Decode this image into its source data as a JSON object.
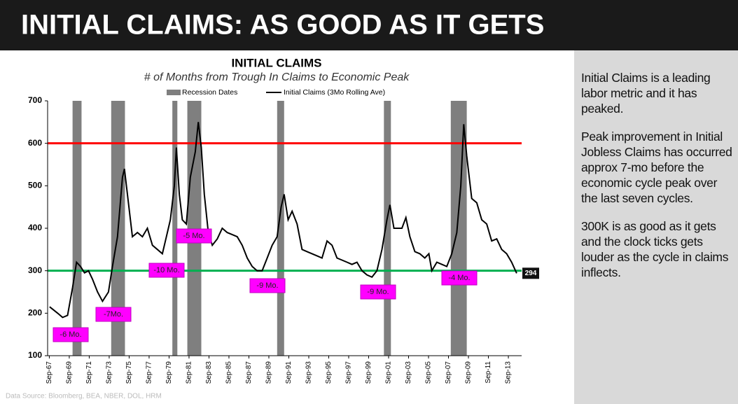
{
  "header": {
    "title": "INITIAL CLAIMS: AS GOOD AS IT GETS"
  },
  "chart_data": {
    "type": "line",
    "title": "INITIAL CLAIMS",
    "subtitle": "# of Months from Trough In Claims to Economic Peak",
    "xlim": [
      1967.5,
      2015
    ],
    "ylim": [
      100,
      700
    ],
    "yticks": [
      100,
      200,
      300,
      400,
      500,
      600,
      700
    ],
    "xticks": [
      {
        "value": 1967.67,
        "label": "Sep-67"
      },
      {
        "value": 1969.67,
        "label": "Sep-69"
      },
      {
        "value": 1971.67,
        "label": "Sep-71"
      },
      {
        "value": 1973.67,
        "label": "Sep-73"
      },
      {
        "value": 1975.67,
        "label": "Sep-75"
      },
      {
        "value": 1977.67,
        "label": "Sep-77"
      },
      {
        "value": 1979.67,
        "label": "Sep-79"
      },
      {
        "value": 1981.67,
        "label": "Sep-81"
      },
      {
        "value": 1983.67,
        "label": "Sep-83"
      },
      {
        "value": 1985.67,
        "label": "Sep-85"
      },
      {
        "value": 1987.67,
        "label": "Sep-87"
      },
      {
        "value": 1989.67,
        "label": "Sep-89"
      },
      {
        "value": 1991.67,
        "label": "Sep-91"
      },
      {
        "value": 1993.67,
        "label": "Sep-93"
      },
      {
        "value": 1995.67,
        "label": "Sep-95"
      },
      {
        "value": 1997.67,
        "label": "Sep-97"
      },
      {
        "value": 1999.67,
        "label": "Sep-99"
      },
      {
        "value": 2001.67,
        "label": "Sep-01"
      },
      {
        "value": 2003.67,
        "label": "Sep-03"
      },
      {
        "value": 2005.67,
        "label": "Sep-05"
      },
      {
        "value": 2007.67,
        "label": "Sep-07"
      },
      {
        "value": 2009.67,
        "label": "Sep-09"
      },
      {
        "value": 2011.67,
        "label": "Sep-11"
      },
      {
        "value": 2013.67,
        "label": "Sep-13"
      }
    ],
    "recessions": {
      "name": "Recession Dates",
      "color": "#7f7f7f",
      "periods": [
        [
          1970.0,
          1970.9
        ],
        [
          1973.87,
          1975.25
        ],
        [
          1980.0,
          1980.5
        ],
        [
          1981.5,
          1982.9
        ],
        [
          1990.5,
          1991.2
        ],
        [
          2001.2,
          2001.9
        ],
        [
          2007.9,
          2009.5
        ]
      ]
    },
    "reference_lines": [
      {
        "value": 600,
        "color": "#ff0000"
      },
      {
        "value": 300,
        "color": "#00b050"
      }
    ],
    "series": [
      {
        "name": "Initial Claims (3Mo Rolling Ave)",
        "color": "#000000",
        "x": [
          1967.7,
          1968.5,
          1969.0,
          1969.5,
          1970.0,
          1970.4,
          1970.8,
          1971.2,
          1971.6,
          1972.0,
          1972.5,
          1973.0,
          1973.6,
          1974.0,
          1974.5,
          1975.0,
          1975.2,
          1975.6,
          1976.0,
          1976.5,
          1977.0,
          1977.5,
          1978.0,
          1978.5,
          1979.0,
          1979.3,
          1979.8,
          1980.2,
          1980.4,
          1980.7,
          1981.0,
          1981.4,
          1981.8,
          1982.3,
          1982.6,
          1982.9,
          1983.2,
          1983.6,
          1984.0,
          1984.5,
          1985.0,
          1985.5,
          1986.0,
          1986.5,
          1987.0,
          1987.5,
          1988.0,
          1988.5,
          1989.0,
          1989.5,
          1990.0,
          1990.5,
          1990.9,
          1991.2,
          1991.6,
          1992.0,
          1992.5,
          1993.0,
          1993.5,
          1994.0,
          1994.5,
          1995.0,
          1995.5,
          1996.0,
          1996.5,
          1997.0,
          1997.5,
          1998.0,
          1998.5,
          1999.0,
          1999.5,
          2000.0,
          2000.5,
          2001.0,
          2001.5,
          2001.8,
          2002.2,
          2002.6,
          2003.0,
          2003.4,
          2003.8,
          2004.3,
          2004.8,
          2005.3,
          2005.7,
          2006.0,
          2006.5,
          2007.0,
          2007.5,
          2008.0,
          2008.5,
          2008.9,
          2009.2,
          2009.5,
          2010.0,
          2010.5,
          2011.0,
          2011.5,
          2012.0,
          2012.5,
          2013.0,
          2013.5,
          2014.0,
          2014.5
        ],
        "values": [
          215,
          200,
          190,
          195,
          260,
          320,
          310,
          295,
          300,
          280,
          250,
          228,
          250,
          310,
          380,
          520,
          540,
          460,
          380,
          390,
          380,
          400,
          360,
          350,
          340,
          370,
          420,
          500,
          590,
          480,
          420,
          410,
          520,
          580,
          650,
          590,
          480,
          390,
          360,
          375,
          400,
          390,
          385,
          380,
          360,
          330,
          310,
          300,
          300,
          330,
          360,
          380,
          450,
          480,
          420,
          440,
          410,
          350,
          345,
          340,
          335,
          330,
          370,
          360,
          330,
          325,
          320,
          315,
          320,
          300,
          290,
          285,
          300,
          350,
          420,
          455,
          400,
          400,
          400,
          425,
          380,
          345,
          340,
          330,
          340,
          300,
          320,
          315,
          310,
          340,
          390,
          500,
          645,
          570,
          470,
          460,
          420,
          410,
          370,
          375,
          350,
          340,
          320,
          294
        ]
      }
    ],
    "annotations": [
      "-6 Mo.",
      "-7Mo.",
      "-10 Mo.",
      "-5 Mo.",
      "-9 Mo.",
      "-9 Mo.",
      "-4 Mo."
    ]
  },
  "source": "Data Source: Bloomberg, BEA, NBER,  DOL, HRM",
  "sidebar": {
    "paragraphs": [
      "Initial Claims is a leading labor metric and it has peaked.",
      "Peak improvement in Initial Jobless Claims has occurred approx 7-mo before the economic cycle peak over the last seven cycles.",
      "300K is as good as it gets and the clock ticks gets louder as the cycle in claims inflects."
    ]
  }
}
